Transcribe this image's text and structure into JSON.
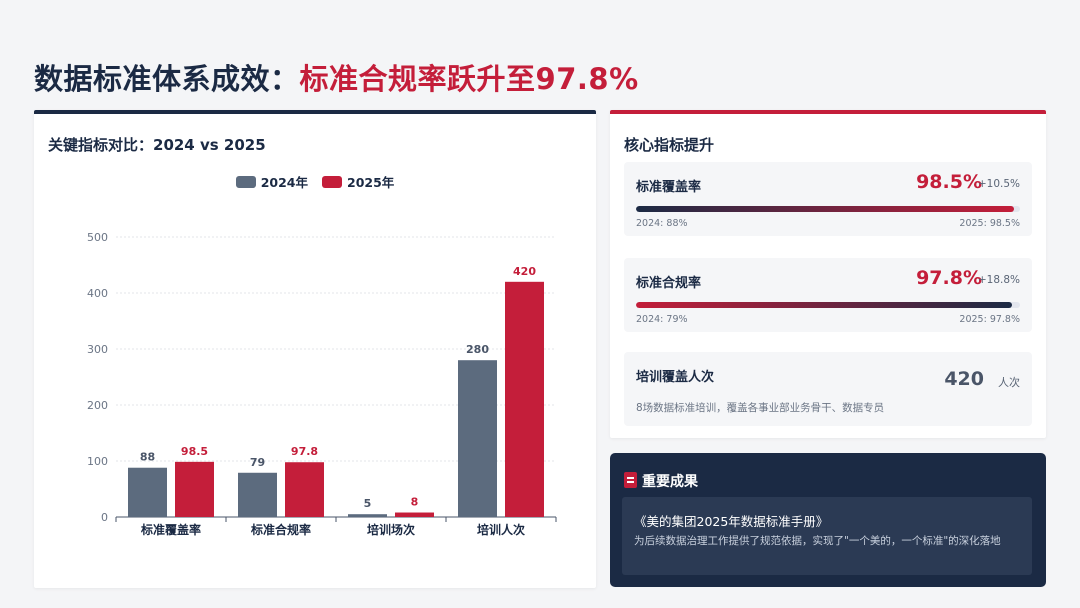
{
  "page": {
    "title_main": "数据标准体系成效：",
    "title_accent": "标准合规率跃升至97.8%"
  },
  "colors": {
    "navy": "#1b2a44",
    "red": "#c41e3a",
    "bar_2024": "#5c6b7e",
    "bar_2025": "#c41e3a"
  },
  "chart_card": {
    "title": "关键指标对比：2024 vs 2025"
  },
  "chart_data": {
    "type": "bar",
    "categories": [
      "标准覆盖率",
      "标准合规率",
      "培训场次",
      "培训人次"
    ],
    "series": [
      {
        "name": "2024年",
        "values": [
          88,
          79,
          5,
          280
        ],
        "labels": [
          "88",
          "79",
          "5",
          "280"
        ]
      },
      {
        "name": "2025年",
        "values": [
          98.5,
          97.8,
          8,
          420
        ],
        "labels": [
          "98.5",
          "97.8",
          "8",
          "420"
        ]
      }
    ],
    "ylim": [
      0,
      500
    ],
    "yticks": [
      "0",
      "100",
      "200",
      "300",
      "400",
      "500"
    ],
    "grid": true,
    "legend": "top-center"
  },
  "metrics_card": {
    "title": "核心指标提升",
    "items": [
      {
        "label": "标准覆盖率",
        "value": "98.5%",
        "delta": "+10.5%",
        "from": "2024: 88%",
        "to": "2025: 98.5%",
        "progress": 98.5
      },
      {
        "label": "标准合规率",
        "value": "97.8%",
        "delta": "+18.8%",
        "from": "2024: 79%",
        "to": "2025: 97.8%",
        "progress": 97.8
      }
    ],
    "training": {
      "label": "培训覆盖人次",
      "value": "420",
      "unit": "人次",
      "desc": "8场数据标准培训，覆盖各事业部业务骨干、数据专员"
    }
  },
  "result_card": {
    "title": "重要成果",
    "book": "《美的集团2025年数据标准手册》",
    "desc": "为后续数据治理工作提供了规范依据，实现了\"一个美的，一个标准\"的深化落地"
  }
}
